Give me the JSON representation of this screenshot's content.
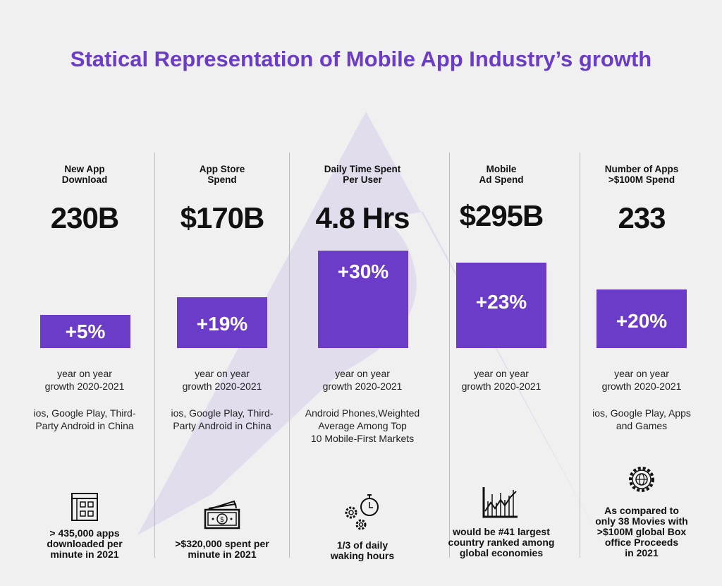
{
  "title": "Statical Representation of Mobile App Industry’s growth",
  "columns": [
    {
      "label_1": "New App",
      "label_2": "Download",
      "value": "230B",
      "growth": "+5%",
      "growth_pct": 5,
      "yoy_1": "year on year",
      "yoy_2": "growth 2020-2021",
      "note_1": "ios, Google Play, Third-",
      "note_2": "Party Android in China",
      "note_3": "",
      "icon": "app-grid-window-icon",
      "fact": [
        "> 435,000 apps",
        "downloaded per",
        "minute in 2021"
      ]
    },
    {
      "label_1": "App Store",
      "label_2": "Spend",
      "value": "$170B",
      "growth": "+19%",
      "growth_pct": 19,
      "yoy_1": "year on year",
      "yoy_2": "growth 2020-2021",
      "note_1": "ios, Google Play, Third-",
      "note_2": "Party Android in China",
      "note_3": "",
      "icon": "money-bills-icon",
      "fact": [
        ">$320,000 spent per",
        "minute in 2021"
      ]
    },
    {
      "label_1": "Daily Time Spent",
      "label_2": "Per User",
      "value": "4.8 Hrs",
      "growth": "+30%",
      "growth_pct": 30,
      "yoy_1": "year on year",
      "yoy_2": "growth 2020-2021",
      "note_1": "Android Phones,Weighted",
      "note_2": "Average Among Top",
      "note_3": "10 Mobile-First Markets",
      "icon": "stopwatch-gears-icon",
      "fact": [
        "1/3 of daily",
        "waking hours"
      ]
    },
    {
      "label_1": "Mobile",
      "label_2": "Ad Spend",
      "value": "$295B",
      "growth": "+23%",
      "growth_pct": 23,
      "yoy_1": "year on year",
      "yoy_2": "growth 2020-2021",
      "note_1": "",
      "note_2": "",
      "note_3": "",
      "icon": "stock-chart-icon",
      "fact": [
        "would be #41 largest",
        "country ranked among",
        "global economies"
      ]
    },
    {
      "label_1": "Number of Apps",
      "label_2": ">$100M Spend",
      "value": "233",
      "growth": "+20%",
      "growth_pct": 20,
      "yoy_1": "year on year",
      "yoy_2": "growth 2020-2021",
      "note_1": "ios, Google Play, Apps",
      "note_2": "and Games",
      "note_3": "",
      "icon": "globe-gear-icon",
      "fact": [
        "As compared to",
        "only 38 Movies with",
        ">$100M global Box",
        "office Proceeds",
        "in 2021"
      ]
    }
  ],
  "colors": {
    "accent": "#6a3cc7",
    "background": "#f0f0f0",
    "watermark": "#e0dcee"
  }
}
